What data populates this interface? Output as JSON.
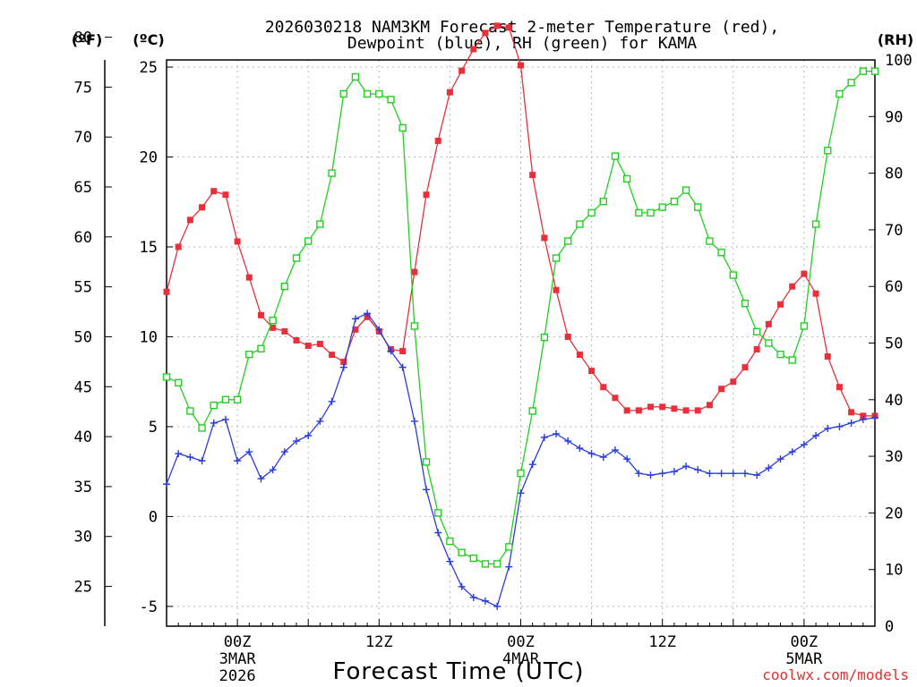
{
  "chart_data": {
    "type": "line",
    "title_line1": "2026030218 NAM3KM Forecast 2-meter Temperature (red),",
    "title_line2": "Dewpoint (blue), RH (green) for KAMA",
    "xlabel": "Forecast Time (UTC)",
    "credit": "coolwx.com/models",
    "left_f_unit": "(ºF)",
    "left_c_unit": "(ºC)",
    "right_unit": "(RH)",
    "x_hours": [
      0,
      1,
      2,
      3,
      4,
      5,
      6,
      7,
      8,
      9,
      10,
      11,
      12,
      13,
      14,
      15,
      16,
      17,
      18,
      19,
      20,
      21,
      22,
      23,
      24,
      25,
      26,
      27,
      28,
      29,
      30,
      31,
      32,
      33,
      34,
      35,
      36,
      37,
      38,
      39,
      40,
      41,
      42,
      43,
      44,
      45,
      46,
      47,
      48,
      49,
      50,
      51,
      52,
      53,
      54,
      55,
      56,
      57,
      58,
      59,
      60
    ],
    "xlim": [
      0,
      60
    ],
    "x_ticks": [
      {
        "hour": 6,
        "label": "00Z",
        "sub1": "3MAR",
        "sub2": "2026"
      },
      {
        "hour": 18,
        "label": "12Z",
        "sub1": "",
        "sub2": ""
      },
      {
        "hour": 30,
        "label": "00Z",
        "sub1": "4MAR",
        "sub2": ""
      },
      {
        "hour": 42,
        "label": "12Z",
        "sub1": "",
        "sub2": ""
      },
      {
        "hour": 54,
        "label": "00Z",
        "sub1": "5MAR",
        "sub2": ""
      }
    ],
    "ylim_c": [
      -6.1,
      25.4
    ],
    "c_ticks": [
      "-5",
      "0",
      "5",
      "10",
      "15",
      "20",
      "25"
    ],
    "f_ticks": [
      "25",
      "30",
      "35",
      "40",
      "45",
      "50",
      "55",
      "60",
      "65",
      "70",
      "75",
      "80"
    ],
    "ylim_rh": [
      0,
      100
    ],
    "rh_ticks": [
      "0",
      "10",
      "20",
      "30",
      "40",
      "50",
      "60",
      "70",
      "80",
      "90",
      "100"
    ],
    "series": [
      {
        "name": "2-meter Temperature",
        "unit": "C",
        "color": "#e8303a",
        "marker": "filled-square",
        "values": [
          12.5,
          15.0,
          16.5,
          17.2,
          18.1,
          17.9,
          15.3,
          13.3,
          11.2,
          10.5,
          10.3,
          9.8,
          9.5,
          9.6,
          9.0,
          8.6,
          10.4,
          11.1,
          10.3,
          9.3,
          9.2,
          13.6,
          17.9,
          20.9,
          23.6,
          24.8,
          26.0,
          26.9,
          27.3,
          27.2,
          25.1,
          19.0,
          15.5,
          12.6,
          10.0,
          9.0,
          8.1,
          7.2,
          6.6,
          5.9,
          5.9,
          6.1,
          6.1,
          6.0,
          5.9,
          5.9,
          6.2,
          7.1,
          7.5,
          8.3,
          9.3,
          10.7,
          11.8,
          12.8,
          13.5,
          12.4,
          8.9,
          7.2,
          5.8,
          5.6,
          5.6
        ]
      },
      {
        "name": "Dewpoint",
        "unit": "C",
        "color": "#2a3cdc",
        "marker": "plus",
        "values": [
          1.8,
          3.5,
          3.3,
          3.1,
          5.2,
          5.4,
          3.1,
          3.6,
          2.1,
          2.6,
          3.6,
          4.2,
          4.5,
          5.3,
          6.4,
          8.3,
          11.0,
          11.3,
          10.4,
          9.2,
          8.3,
          5.3,
          1.5,
          -0.9,
          -2.5,
          -3.9,
          -4.5,
          -4.7,
          -5.0,
          -2.8,
          1.3,
          2.9,
          4.4,
          4.6,
          4.2,
          3.8,
          3.5,
          3.3,
          3.7,
          3.2,
          2.4,
          2.3,
          2.4,
          2.5,
          2.8,
          2.6,
          2.4,
          2.4,
          2.4,
          2.4,
          2.3,
          2.7,
          3.2,
          3.6,
          4.0,
          4.5,
          4.9,
          5.0,
          5.2,
          5.4,
          5.5
        ]
      },
      {
        "name": "RH",
        "unit": "%",
        "color": "#22d022",
        "marker": "open-square",
        "values": [
          44,
          43,
          38,
          35,
          39,
          40,
          40,
          48,
          49,
          54,
          60,
          65,
          68,
          71,
          80,
          94,
          97,
          94,
          94,
          93,
          88,
          53,
          29,
          20,
          15,
          13,
          12,
          11,
          11,
          14,
          27,
          38,
          51,
          65,
          68,
          71,
          73,
          75,
          83,
          79,
          73,
          73,
          74,
          75,
          77,
          74,
          68,
          66,
          62,
          57,
          52,
          50,
          48,
          47,
          53,
          71,
          84,
          94,
          96,
          98,
          98
        ]
      }
    ]
  }
}
